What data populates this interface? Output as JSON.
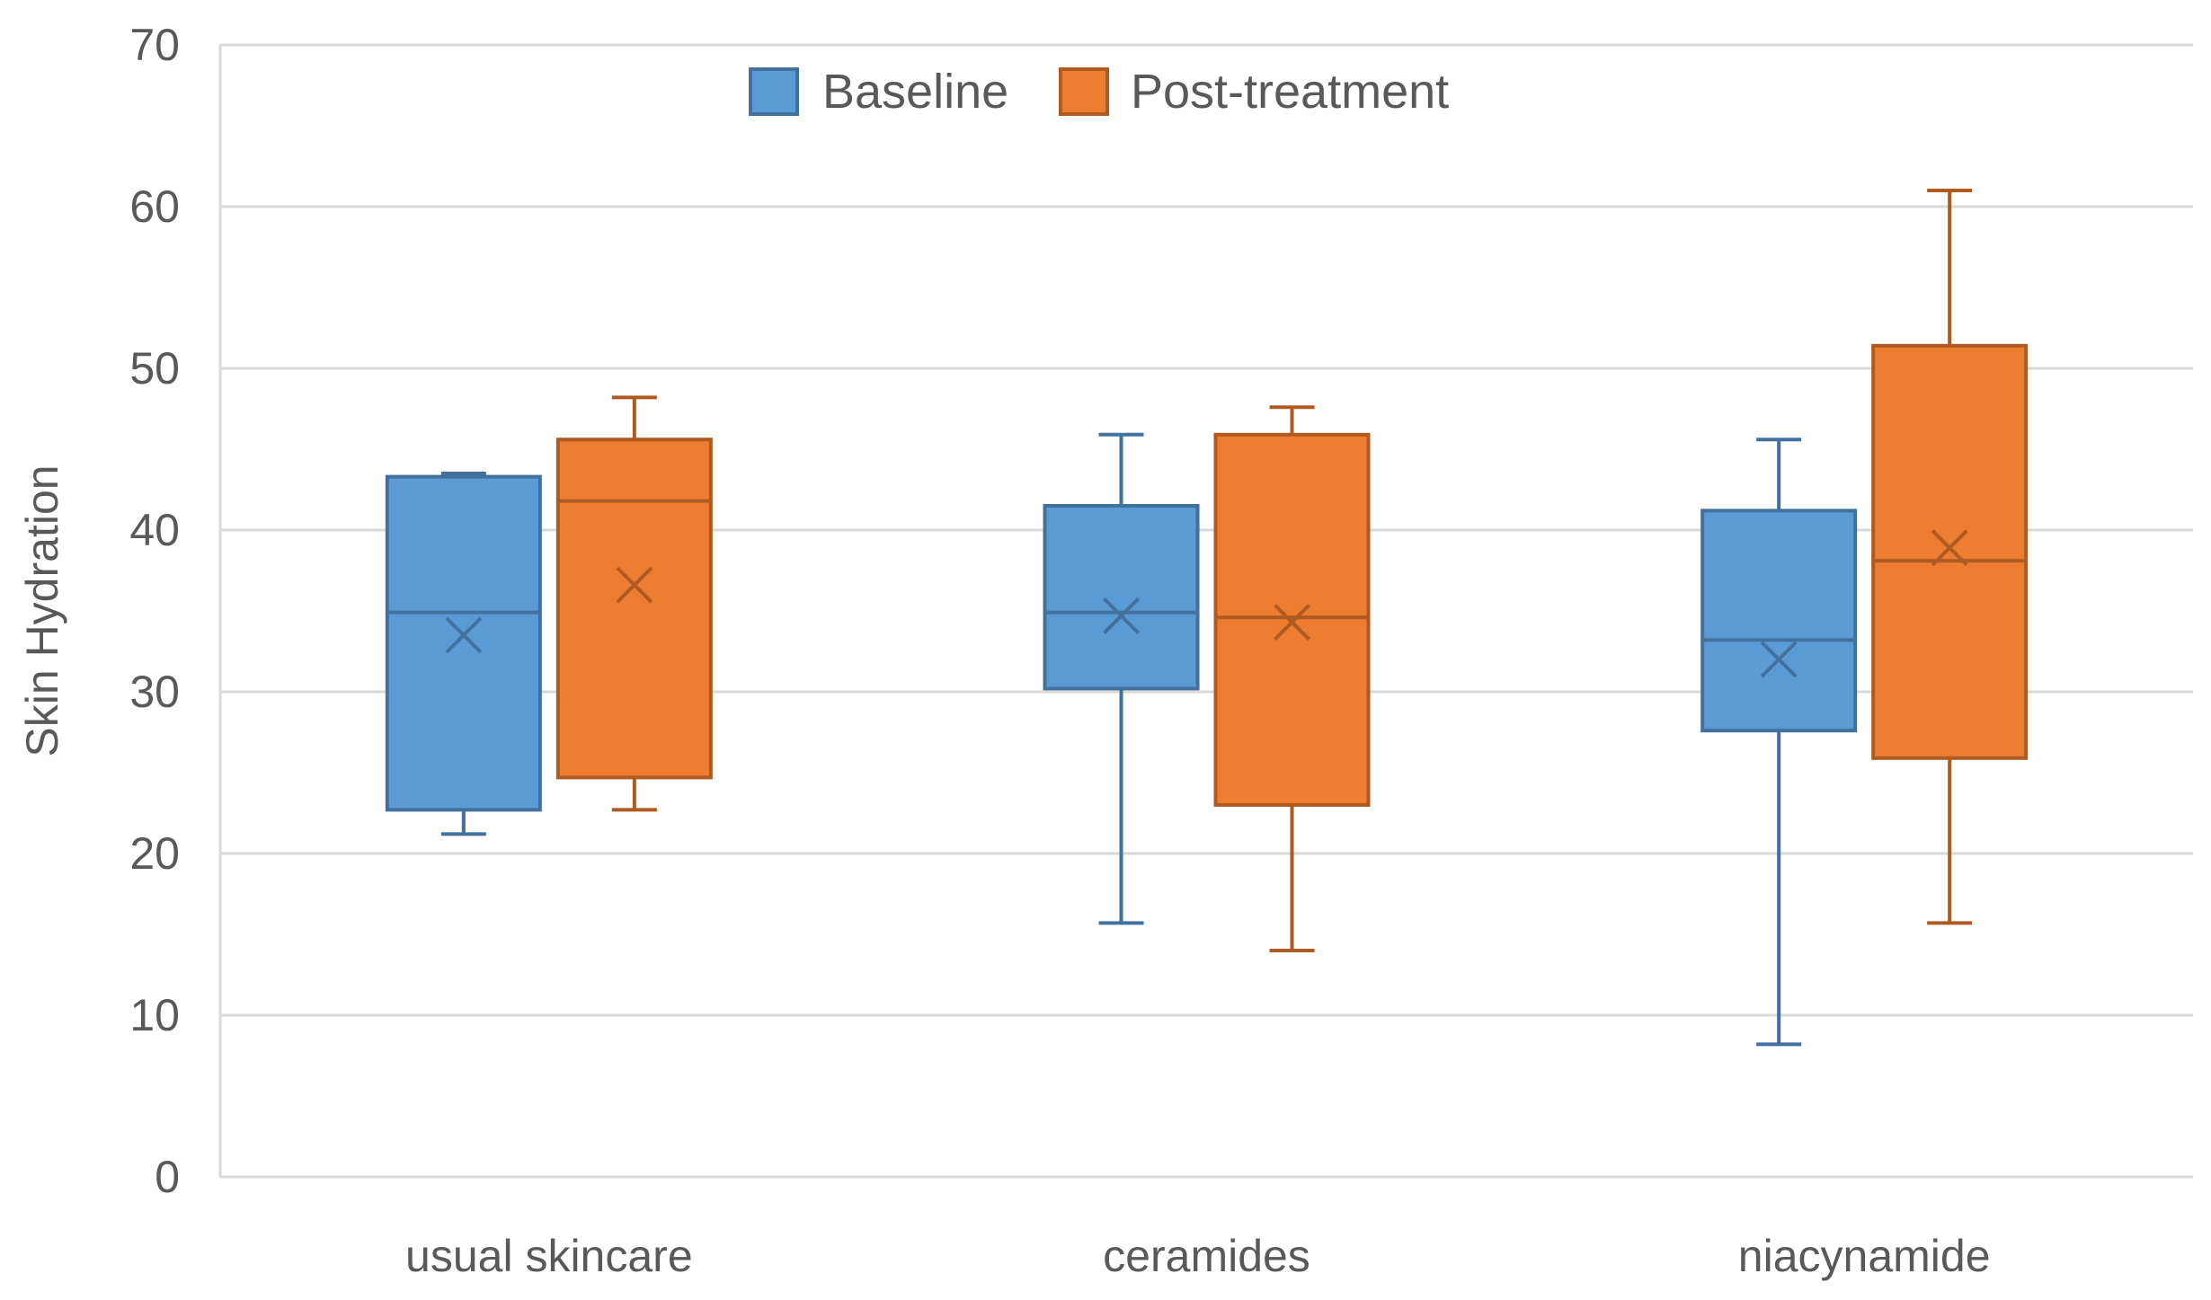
{
  "chart_data": {
    "type": "boxplot",
    "title": "",
    "xlabel": "",
    "ylabel": "Skin Hydration",
    "ylim": [
      0,
      70
    ],
    "yticks": [
      0,
      10,
      20,
      30,
      40,
      50,
      60,
      70
    ],
    "grid": true,
    "legend_position": "top-center",
    "categories": [
      "usual skincare",
      "ceramides",
      "niacynamide"
    ],
    "series": [
      {
        "name": "Baseline",
        "color": "#5b9bd5",
        "edge_color": "#41719c",
        "boxes": [
          {
            "min": 21.2,
            "q1": 22.7,
            "median": 34.9,
            "q3": 43.3,
            "max": 43.5,
            "mean": 33.5
          },
          {
            "min": 15.7,
            "q1": 30.2,
            "median": 34.9,
            "q3": 41.5,
            "max": 45.9,
            "mean": 34.7
          },
          {
            "min": 8.2,
            "q1": 27.6,
            "median": 33.2,
            "q3": 41.2,
            "max": 45.6,
            "mean": 32.0
          }
        ]
      },
      {
        "name": "Post-treatment",
        "color": "#ed7d31",
        "edge_color": "#ae5a21",
        "boxes": [
          {
            "min": 22.7,
            "q1": 24.7,
            "median": 41.8,
            "q3": 45.6,
            "max": 48.2,
            "mean": 36.6
          },
          {
            "min": 14.0,
            "q1": 23.0,
            "median": 34.6,
            "q3": 45.9,
            "max": 47.6,
            "mean": 34.3
          },
          {
            "min": 15.7,
            "q1": 25.9,
            "median": 38.1,
            "q3": 51.4,
            "max": 61.0,
            "mean": 38.9
          }
        ]
      }
    ]
  }
}
